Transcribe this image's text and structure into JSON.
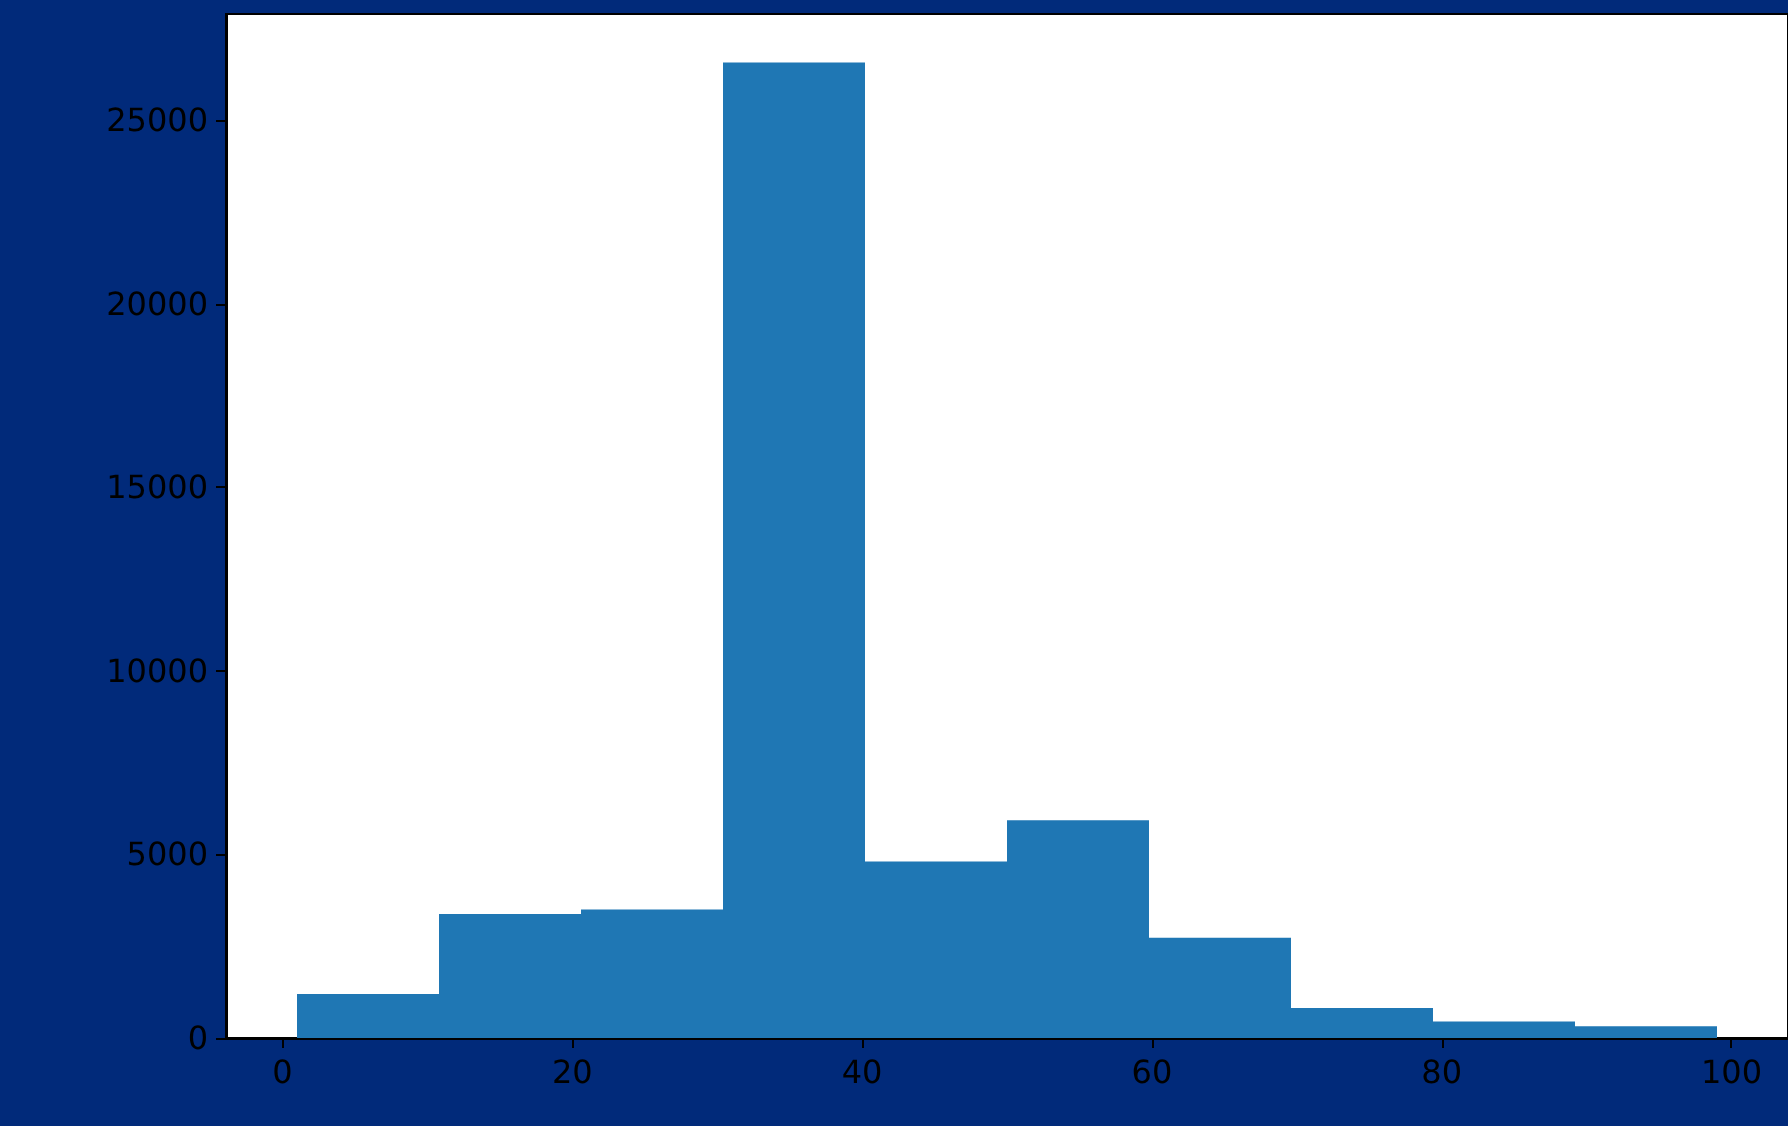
{
  "chart_data": {
    "type": "histogram",
    "bins": [
      1,
      10.8,
      20.6,
      30.4,
      40.2,
      50,
      59.8,
      69.6,
      79.4,
      89.2,
      99
    ],
    "values": [
      1200,
      3380,
      3500,
      26580,
      4810,
      5930,
      2730,
      820,
      450,
      320
    ],
    "color": "#1f77b4",
    "xlim": [
      -3.9,
      103.9
    ],
    "xticks": [
      0,
      20,
      40,
      60,
      80,
      100
    ],
    "ylim": [
      0,
      27900
    ],
    "yticks": [
      0,
      5000,
      10000,
      15000,
      20000,
      25000
    ],
    "grid": false
  }
}
